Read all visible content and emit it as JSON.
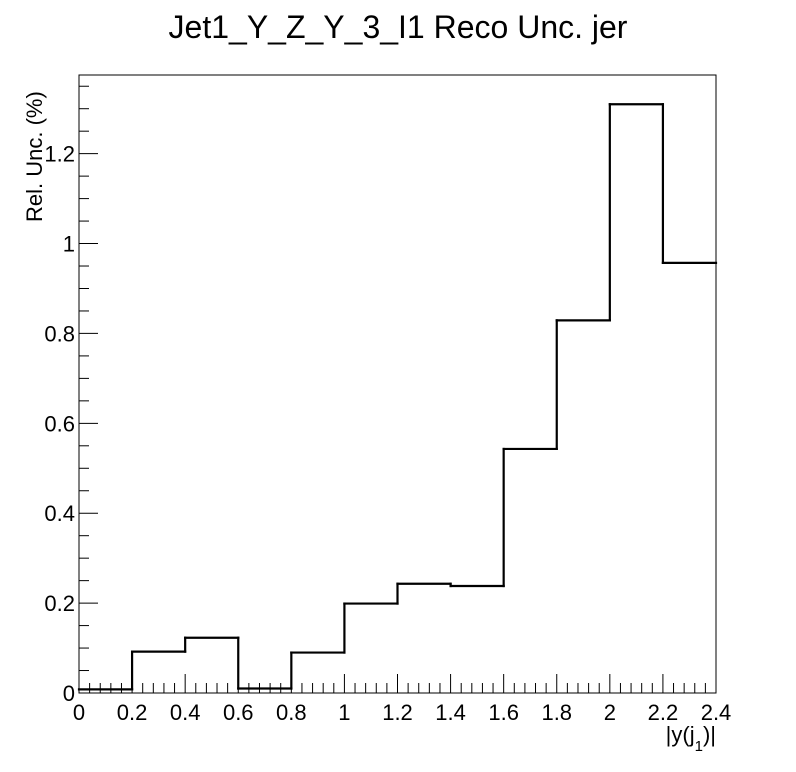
{
  "chart_data": {
    "type": "bar",
    "style": "step-histogram",
    "title": "Jet1_Y_Z_Y_3_I1 Reco Unc. jer",
    "xlabel": "|y(j",
    "xlabel_subscript": "1",
    "xlabel_suffix": ")|",
    "ylabel": "Rel. Unc. (%)",
    "xlim": [
      0,
      2.4
    ],
    "ylim": [
      0,
      1.375
    ],
    "bin_edges": [
      0,
      0.2,
      0.4,
      0.6,
      0.8,
      1.0,
      1.2,
      1.4,
      1.6,
      1.8,
      2.0,
      2.2,
      2.4
    ],
    "values": [
      0.008,
      0.092,
      0.123,
      0.01,
      0.09,
      0.199,
      0.243,
      0.238,
      0.543,
      0.829,
      1.31,
      0.957
    ],
    "x_ticks": [
      "0",
      "0.2",
      "0.4",
      "0.6",
      "0.8",
      "1",
      "1.2",
      "1.4",
      "1.6",
      "1.8",
      "2",
      "2.2",
      "2.4"
    ],
    "x_tick_values": [
      0,
      0.2,
      0.4,
      0.6,
      0.8,
      1.0,
      1.2,
      1.4,
      1.6,
      1.8,
      2.0,
      2.2,
      2.4
    ],
    "y_ticks": [
      "0",
      "0.2",
      "0.4",
      "0.6",
      "0.8",
      "1",
      "1.2"
    ],
    "y_tick_values": [
      0,
      0.2,
      0.4,
      0.6,
      0.8,
      1.0,
      1.2
    ],
    "grid": false,
    "line_color": "#000000",
    "frame_color": "#000000"
  }
}
